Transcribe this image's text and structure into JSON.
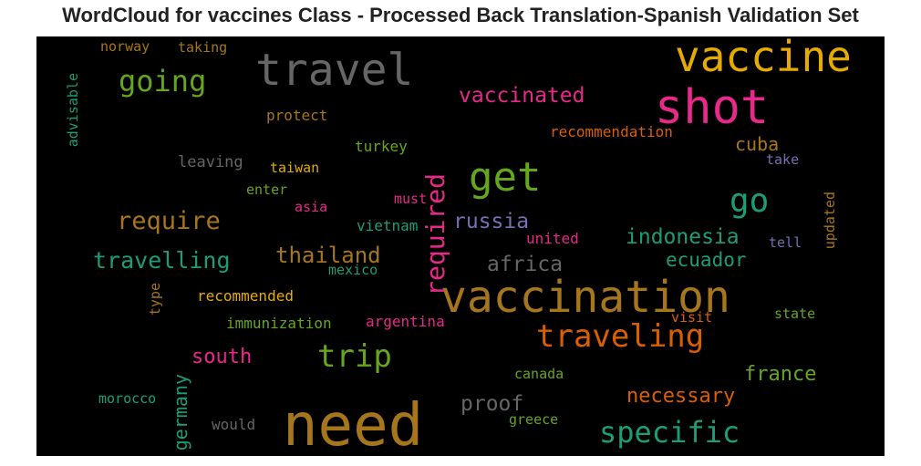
{
  "title": "WordCloud for vaccines Class - Processed Back Translation-Spanish Validation Set",
  "chart_data": {
    "type": "wordcloud",
    "title": "WordCloud for vaccines Class - Processed Back Translation-Spanish Validation Set",
    "background": "#000000",
    "words": [
      {
        "text": "need",
        "color": "#a6761d"
      },
      {
        "text": "vaccination",
        "color": "#a6761d"
      },
      {
        "text": "shot",
        "color": "#e7298a"
      },
      {
        "text": "travel",
        "color": "#666666"
      },
      {
        "text": "vaccine",
        "color": "#e6ab02"
      },
      {
        "text": "get",
        "color": "#66a61e"
      },
      {
        "text": "go",
        "color": "#1b9e77"
      },
      {
        "text": "traveling",
        "color": "#d95f02"
      },
      {
        "text": "specific",
        "color": "#1b9e77"
      },
      {
        "text": "trip",
        "color": "#66a61e"
      },
      {
        "text": "going",
        "color": "#66a61e"
      },
      {
        "text": "required",
        "color": "#e7298a"
      },
      {
        "text": "require",
        "color": "#a6761d"
      },
      {
        "text": "travelling",
        "color": "#1b9e77"
      },
      {
        "text": "vaccinated",
        "color": "#e7298a"
      },
      {
        "text": "thailand",
        "color": "#a6761d"
      },
      {
        "text": "indonesia",
        "color": "#1b9e77"
      },
      {
        "text": "russia",
        "color": "#7570b3"
      },
      {
        "text": "africa",
        "color": "#666666"
      },
      {
        "text": "ecuador",
        "color": "#1b9e77"
      },
      {
        "text": "cuba",
        "color": "#a6761d"
      },
      {
        "text": "germany",
        "color": "#1b9e77"
      },
      {
        "text": "south",
        "color": "#e7298a"
      },
      {
        "text": "france",
        "color": "#66a61e"
      },
      {
        "text": "necessary",
        "color": "#d95f02"
      },
      {
        "text": "proof",
        "color": "#666666"
      },
      {
        "text": "recommendation",
        "color": "#d95f02"
      },
      {
        "text": "recommended",
        "color": "#e6ab02"
      },
      {
        "text": "immunization",
        "color": "#66a61e"
      },
      {
        "text": "argentina",
        "color": "#e7298a"
      },
      {
        "text": "united",
        "color": "#e7298a"
      },
      {
        "text": "vietnam",
        "color": "#1b9e77"
      },
      {
        "text": "leaving",
        "color": "#666666"
      },
      {
        "text": "protect",
        "color": "#a6761d"
      },
      {
        "text": "turkey",
        "color": "#66a61e"
      },
      {
        "text": "taiwan",
        "color": "#e6ab02"
      },
      {
        "text": "enter",
        "color": "#66a61e"
      },
      {
        "text": "asia",
        "color": "#e7298a"
      },
      {
        "text": "must",
        "color": "#e7298a"
      },
      {
        "text": "mexico",
        "color": "#1b9e77"
      },
      {
        "text": "visit",
        "color": "#d95f02"
      },
      {
        "text": "state",
        "color": "#66a61e"
      },
      {
        "text": "tell",
        "color": "#7570b3"
      },
      {
        "text": "take",
        "color": "#7570b3"
      },
      {
        "text": "updated",
        "color": "#a6761d"
      },
      {
        "text": "advisable",
        "color": "#1b9e77"
      },
      {
        "text": "norway",
        "color": "#a6761d"
      },
      {
        "text": "taking",
        "color": "#a6761d"
      },
      {
        "text": "type",
        "color": "#a6761d"
      },
      {
        "text": "canada",
        "color": "#66a61e"
      },
      {
        "text": "morocco",
        "color": "#1b9e77"
      },
      {
        "text": "would",
        "color": "#666666"
      },
      {
        "text": "greece",
        "color": "#66a61e"
      }
    ]
  }
}
